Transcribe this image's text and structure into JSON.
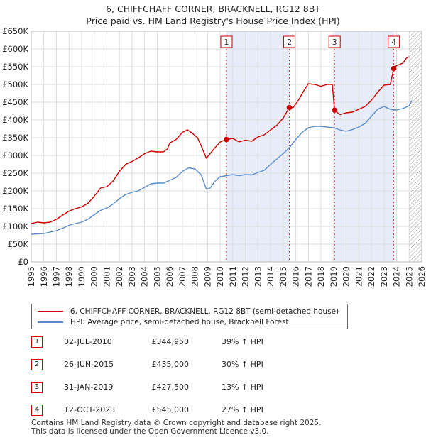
{
  "title": {
    "line1": "6, CHIFFCHAFF CORNER, BRACKNELL, RG12 8BT",
    "line2": "Price paid vs. HM Land Registry's House Price Index (HPI)"
  },
  "colors": {
    "red": "#cc0000",
    "blue": "#5b8cc8",
    "shade": "#e6edf8",
    "grid": "#dddddd",
    "future_hatch": "#999999"
  },
  "chart_data": {
    "type": "line",
    "xlim": [
      1995,
      2026
    ],
    "ylim": [
      0,
      650000
    ],
    "x_ticks": [
      1995,
      1996,
      1997,
      1998,
      1999,
      2000,
      2001,
      2002,
      2003,
      2004,
      2005,
      2006,
      2007,
      2008,
      2009,
      2010,
      2011,
      2012,
      2013,
      2014,
      2015,
      2016,
      2017,
      2018,
      2019,
      2020,
      2021,
      2022,
      2023,
      2024,
      2025,
      2026
    ],
    "y_ticks": [
      {
        "value": 0,
        "label": "£0"
      },
      {
        "value": 50000,
        "label": "£50K"
      },
      {
        "value": 100000,
        "label": "£100K"
      },
      {
        "value": 150000,
        "label": "£150K"
      },
      {
        "value": 200000,
        "label": "£200K"
      },
      {
        "value": 250000,
        "label": "£250K"
      },
      {
        "value": 300000,
        "label": "£300K"
      },
      {
        "value": 350000,
        "label": "£350K"
      },
      {
        "value": 400000,
        "label": "£400K"
      },
      {
        "value": 450000,
        "label": "£450K"
      },
      {
        "value": 500000,
        "label": "£500K"
      },
      {
        "value": 550000,
        "label": "£550K"
      },
      {
        "value": 600000,
        "label": "£600K"
      },
      {
        "value": 650000,
        "label": "£650K"
      }
    ],
    "shaded_ranges": [
      [
        2010.5,
        2015.49
      ],
      [
        2019.08,
        2023.78
      ]
    ],
    "future_from": 2025.0,
    "series": [
      {
        "name": "6, CHIFFCHAFF CORNER, BRACKNELL, RG12 8BT (semi-detached house)",
        "color": "#cc0000",
        "points": [
          [
            1995.0,
            108000
          ],
          [
            1995.5,
            112000
          ],
          [
            1996.0,
            110000
          ],
          [
            1996.5,
            112000
          ],
          [
            1997.0,
            120000
          ],
          [
            1997.5,
            132000
          ],
          [
            1998.0,
            143000
          ],
          [
            1998.5,
            150000
          ],
          [
            1999.0,
            155000
          ],
          [
            1999.5,
            165000
          ],
          [
            2000.0,
            185000
          ],
          [
            2000.5,
            208000
          ],
          [
            2001.0,
            212000
          ],
          [
            2001.5,
            228000
          ],
          [
            2002.0,
            255000
          ],
          [
            2002.5,
            275000
          ],
          [
            2003.0,
            283000
          ],
          [
            2003.5,
            293000
          ],
          [
            2004.0,
            305000
          ],
          [
            2004.5,
            312000
          ],
          [
            2005.0,
            310000
          ],
          [
            2005.5,
            310000
          ],
          [
            2005.8,
            318000
          ],
          [
            2006.0,
            335000
          ],
          [
            2006.5,
            345000
          ],
          [
            2007.0,
            365000
          ],
          [
            2007.4,
            372000
          ],
          [
            2007.8,
            362000
          ],
          [
            2008.2,
            350000
          ],
          [
            2008.6,
            318000
          ],
          [
            2008.9,
            292000
          ],
          [
            2009.2,
            305000
          ],
          [
            2009.6,
            322000
          ],
          [
            2010.0,
            338000
          ],
          [
            2010.5,
            344950
          ],
          [
            2011.0,
            348000
          ],
          [
            2011.5,
            338000
          ],
          [
            2012.0,
            343000
          ],
          [
            2012.5,
            340000
          ],
          [
            2013.0,
            352000
          ],
          [
            2013.5,
            358000
          ],
          [
            2014.0,
            372000
          ],
          [
            2014.5,
            385000
          ],
          [
            2015.0,
            405000
          ],
          [
            2015.49,
            435000
          ],
          [
            2015.8,
            435000
          ],
          [
            2016.2,
            455000
          ],
          [
            2016.6,
            480000
          ],
          [
            2017.0,
            502000
          ],
          [
            2017.5,
            500000
          ],
          [
            2018.0,
            495000
          ],
          [
            2018.5,
            500000
          ],
          [
            2018.9,
            500000
          ],
          [
            2019.08,
            427500
          ],
          [
            2019.5,
            415000
          ],
          [
            2020.0,
            420000
          ],
          [
            2020.5,
            422000
          ],
          [
            2021.0,
            430000
          ],
          [
            2021.5,
            438000
          ],
          [
            2022.0,
            455000
          ],
          [
            2022.5,
            478000
          ],
          [
            2023.0,
            498000
          ],
          [
            2023.5,
            500000
          ],
          [
            2023.78,
            545000
          ],
          [
            2024.0,
            553000
          ],
          [
            2024.5,
            560000
          ],
          [
            2024.8,
            575000
          ],
          [
            2025.0,
            578000
          ]
        ]
      },
      {
        "name": "HPI: Average price, semi-detached house, Bracknell Forest",
        "color": "#5b8cc8",
        "points": [
          [
            1995.0,
            78000
          ],
          [
            1995.5,
            79000
          ],
          [
            1996.0,
            80000
          ],
          [
            1996.5,
            84000
          ],
          [
            1997.0,
            88000
          ],
          [
            1997.5,
            95000
          ],
          [
            1998.0,
            103000
          ],
          [
            1998.5,
            108000
          ],
          [
            1999.0,
            112000
          ],
          [
            1999.5,
            120000
          ],
          [
            2000.0,
            133000
          ],
          [
            2000.5,
            145000
          ],
          [
            2001.0,
            152000
          ],
          [
            2001.5,
            163000
          ],
          [
            2002.0,
            178000
          ],
          [
            2002.5,
            190000
          ],
          [
            2003.0,
            196000
          ],
          [
            2003.5,
            200000
          ],
          [
            2004.0,
            210000
          ],
          [
            2004.5,
            220000
          ],
          [
            2005.0,
            222000
          ],
          [
            2005.5,
            222000
          ],
          [
            2006.0,
            230000
          ],
          [
            2006.5,
            238000
          ],
          [
            2007.0,
            255000
          ],
          [
            2007.5,
            265000
          ],
          [
            2008.0,
            262000
          ],
          [
            2008.5,
            245000
          ],
          [
            2008.9,
            205000
          ],
          [
            2009.2,
            208000
          ],
          [
            2009.6,
            228000
          ],
          [
            2010.0,
            240000
          ],
          [
            2010.5,
            243000
          ],
          [
            2011.0,
            246000
          ],
          [
            2011.5,
            243000
          ],
          [
            2012.0,
            246000
          ],
          [
            2012.5,
            245000
          ],
          [
            2013.0,
            252000
          ],
          [
            2013.5,
            258000
          ],
          [
            2014.0,
            275000
          ],
          [
            2014.5,
            290000
          ],
          [
            2015.0,
            305000
          ],
          [
            2015.5,
            322000
          ],
          [
            2016.0,
            345000
          ],
          [
            2016.5,
            365000
          ],
          [
            2017.0,
            378000
          ],
          [
            2017.5,
            382000
          ],
          [
            2018.0,
            382000
          ],
          [
            2018.5,
            380000
          ],
          [
            2019.0,
            378000
          ],
          [
            2019.5,
            372000
          ],
          [
            2020.0,
            368000
          ],
          [
            2020.5,
            373000
          ],
          [
            2021.0,
            380000
          ],
          [
            2021.5,
            390000
          ],
          [
            2022.0,
            410000
          ],
          [
            2022.5,
            430000
          ],
          [
            2023.0,
            438000
          ],
          [
            2023.5,
            430000
          ],
          [
            2024.0,
            428000
          ],
          [
            2024.5,
            432000
          ],
          [
            2025.0,
            440000
          ],
          [
            2025.2,
            455000
          ]
        ]
      }
    ],
    "sale_markers": [
      {
        "label": "1",
        "x": 2010.5,
        "y": 344950
      },
      {
        "label": "2",
        "x": 2015.49,
        "y": 435000
      },
      {
        "label": "3",
        "x": 2019.08,
        "y": 427500
      },
      {
        "label": "4",
        "x": 2023.78,
        "y": 545000
      }
    ]
  },
  "legend": {
    "red_label": "6, CHIFFCHAFF CORNER, BRACKNELL, RG12 8BT (semi-detached house)",
    "blue_label": "HPI: Average price, semi-detached house, Bracknell Forest"
  },
  "sales": [
    {
      "num": "1",
      "date": "02-JUL-2010",
      "price": "£344,950",
      "hpi": "39% ↑ HPI"
    },
    {
      "num": "2",
      "date": "26-JUN-2015",
      "price": "£435,000",
      "hpi": "30% ↑ HPI"
    },
    {
      "num": "3",
      "date": "31-JAN-2019",
      "price": "£427,500",
      "hpi": "13% ↑ HPI"
    },
    {
      "num": "4",
      "date": "12-OCT-2023",
      "price": "£545,000",
      "hpi": "27% ↑ HPI"
    }
  ],
  "footer": {
    "line1": "Contains HM Land Registry data © Crown copyright and database right 2025.",
    "line2": "This data is licensed under the Open Government Licence v3.0."
  }
}
